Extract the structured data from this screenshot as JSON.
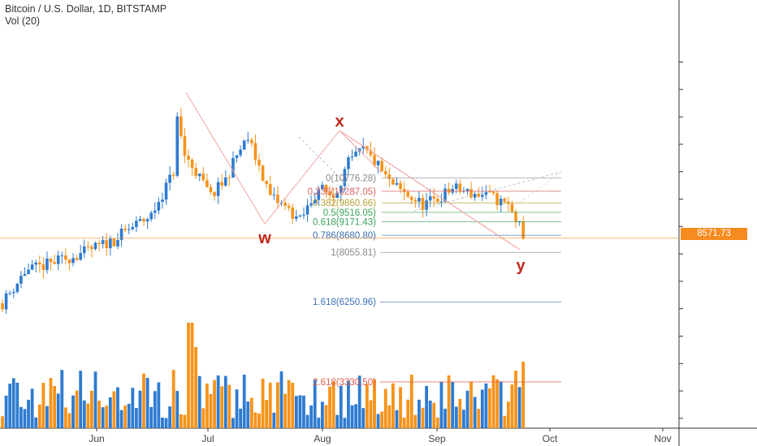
{
  "header": {
    "title": "Bitcoin / U.S. Dollar, 1D, BITSTAMP",
    "volume": "Vol (20)"
  },
  "chart_data": {
    "type": "candlestick",
    "x_ticks": [
      "Jun",
      "Jul",
      "Aug",
      "Sep",
      "Oct",
      "Nov"
    ],
    "ylim": [
      1500,
      15000
    ],
    "last_price": "8571.73",
    "colors": {
      "up": "#2e7bd1",
      "down": "#f7931a",
      "fib_line": "#aaaaaa",
      "pattern": "#f4a3a3",
      "wave_label": "#c0281c",
      "price_tag": "#f68b1f"
    },
    "fib_levels": [
      {
        "label": "0(10776.28)",
        "value": 10776.28,
        "color": "#888888"
      },
      {
        "label": "0.236(10287.05)",
        "value": 10287.05,
        "color": "#e06666"
      },
      {
        "label": "0.382(9860.66)",
        "value": 9860.66,
        "color": "#b8a039"
      },
      {
        "label": "0.5(9516.05)",
        "value": 9516.05,
        "color": "#3aa35a"
      },
      {
        "label": "0.618(9171.43)",
        "value": 9171.43,
        "color": "#3aa35a"
      },
      {
        "label": "0.786(8680.80)",
        "value": 8680.8,
        "color": "#3b6fb6"
      },
      {
        "label": "1(8055.81)",
        "value": 8055.81,
        "color": "#888888"
      },
      {
        "label": "1.618(6250.96)",
        "value": 6250.96,
        "color": "#3b6fb6"
      },
      {
        "label": "2.618(3330.50)",
        "value": 3330.5,
        "color": "#e05c4a"
      }
    ],
    "wave_labels": [
      {
        "text": "w",
        "month": "Jul",
        "day": 17,
        "value": 8000
      },
      {
        "text": "x",
        "month": "Aug",
        "day": 6,
        "value": 11800
      },
      {
        "text": "y",
        "month": "Sep",
        "day": 24,
        "value": 7300
      }
    ]
  }
}
